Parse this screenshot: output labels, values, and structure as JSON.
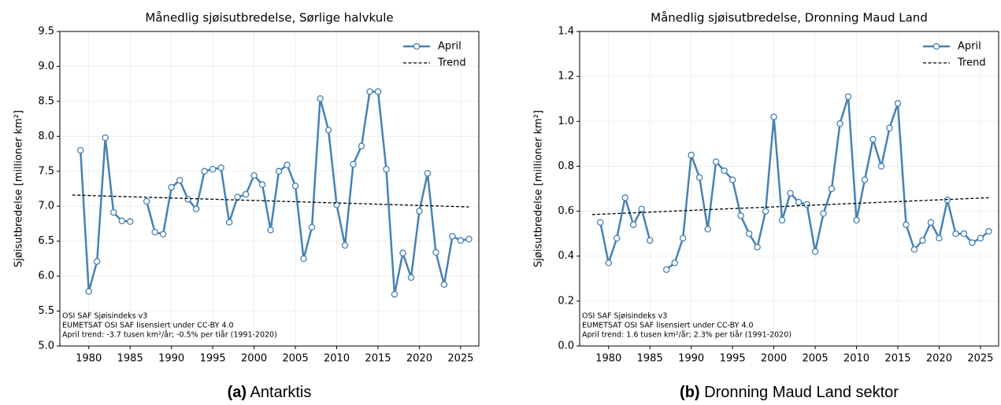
{
  "chart_data": [
    {
      "type": "line",
      "title": "Månedlig sjøisutbredelse, Sørlige halvkule",
      "y_label": "Sjøisutbredelse [millioner km²]",
      "x": [
        1979,
        1980,
        1981,
        1982,
        1983,
        1984,
        1985,
        1986,
        1987,
        1988,
        1989,
        1990,
        1991,
        1992,
        1993,
        1994,
        1995,
        1996,
        1997,
        1998,
        1999,
        2000,
        2001,
        2002,
        2003,
        2004,
        2005,
        2006,
        2007,
        2008,
        2009,
        2010,
        2011,
        2012,
        2013,
        2014,
        2015,
        2016,
        2017,
        2018,
        2019,
        2020,
        2021,
        2022,
        2023,
        2024,
        2025,
        2026
      ],
      "series": [
        {
          "name": "April",
          "color": "#4682b4",
          "values": [
            7.8,
            5.78,
            6.21,
            7.98,
            6.91,
            6.79,
            6.78,
            null,
            7.07,
            6.63,
            6.6,
            7.27,
            7.37,
            7.1,
            6.96,
            7.5,
            7.53,
            7.55,
            6.77,
            7.13,
            7.17,
            7.44,
            7.31,
            6.66,
            7.5,
            7.59,
            7.29,
            6.25,
            6.7,
            8.54,
            8.09,
            7.02,
            6.44,
            7.6,
            7.86,
            8.64,
            8.64,
            7.53,
            5.74,
            6.33,
            5.98,
            6.93,
            7.47,
            6.34,
            5.88,
            6.57,
            6.51,
            6.53
          ]
        },
        {
          "name": "Trend",
          "color": "#000000",
          "linestyle": "dashed",
          "x": [
            1978,
            2026
          ],
          "values": [
            7.16,
            6.99
          ]
        }
      ],
      "xlim": [
        1976.5,
        2027.2
      ],
      "xticks": [
        1980,
        1985,
        1990,
        1995,
        2000,
        2005,
        2010,
        2015,
        2020,
        2025
      ],
      "ylim": [
        5.0,
        9.5
      ],
      "yticks": [
        {
          "value": 5.0,
          "label": "5.0"
        },
        {
          "value": 5.5,
          "label": "5.5"
        },
        {
          "value": 6.0,
          "label": "6.0"
        },
        {
          "value": 6.5,
          "label": "6.5"
        },
        {
          "value": 7.0,
          "label": "7.0"
        },
        {
          "value": 7.5,
          "label": "7.5"
        },
        {
          "value": 8.0,
          "label": "8.0"
        },
        {
          "value": 8.5,
          "label": "8.5"
        },
        {
          "value": 9.0,
          "label": "9.0"
        },
        {
          "value": 9.5,
          "label": "9.5"
        }
      ],
      "grid": true,
      "legend": "upper right",
      "annotations": [
        "OSI SAF Sjøisindeks v3",
        "EUMETSAT OSI SAF lisensiert under CC-BY 4.0",
        "April trend: -3.7 tusen km²/år; -0.5% per tiår (1991-2020)"
      ],
      "caption": {
        "label": "(a)",
        "text": "Antarktis"
      }
    },
    {
      "type": "line",
      "title": "Månedlig sjøisutbredelse, Dronning Maud Land",
      "y_label": "Sjøisutbredelse [millioner km²]",
      "x": [
        1979,
        1980,
        1981,
        1982,
        1983,
        1984,
        1985,
        1986,
        1987,
        1988,
        1989,
        1990,
        1991,
        1992,
        1993,
        1994,
        1995,
        1996,
        1997,
        1998,
        1999,
        2000,
        2001,
        2002,
        2003,
        2004,
        2005,
        2006,
        2007,
        2008,
        2009,
        2010,
        2011,
        2012,
        2013,
        2014,
        2015,
        2016,
        2017,
        2018,
        2019,
        2020,
        2021,
        2022,
        2023,
        2024,
        2025,
        2026
      ],
      "series": [
        {
          "name": "April",
          "color": "#4682b4",
          "values": [
            0.55,
            0.37,
            0.48,
            0.66,
            0.54,
            0.61,
            0.47,
            null,
            0.34,
            0.37,
            0.48,
            0.85,
            0.75,
            0.52,
            0.82,
            0.78,
            0.74,
            0.58,
            0.5,
            0.44,
            0.6,
            1.02,
            0.56,
            0.68,
            0.64,
            0.63,
            0.42,
            0.59,
            0.7,
            0.99,
            1.11,
            0.56,
            0.74,
            0.92,
            0.8,
            0.97,
            1.08,
            0.54,
            0.43,
            0.47,
            0.55,
            0.48,
            0.65,
            0.5,
            0.5,
            0.46,
            0.48,
            0.51
          ]
        },
        {
          "name": "Trend",
          "color": "#000000",
          "linestyle": "dashed",
          "x": [
            1978,
            2026
          ],
          "values": [
            0.585,
            0.66
          ]
        }
      ],
      "xlim": [
        1976.5,
        2027.2
      ],
      "xticks": [
        1980,
        1985,
        1990,
        1995,
        2000,
        2005,
        2010,
        2015,
        2020,
        2025
      ],
      "ylim": [
        0.0,
        1.4
      ],
      "yticks": [
        {
          "value": 0.0,
          "label": "0.0"
        },
        {
          "value": 0.2,
          "label": "0.2"
        },
        {
          "value": 0.4,
          "label": "0.4"
        },
        {
          "value": 0.6,
          "label": "0.6"
        },
        {
          "value": 0.8,
          "label": "0.8"
        },
        {
          "value": 1.0,
          "label": "1.0"
        },
        {
          "value": 1.2,
          "label": "1.2"
        },
        {
          "value": 1.4,
          "label": "1.4"
        }
      ],
      "grid": true,
      "legend": "upper right",
      "annotations": [
        "OSI SAF Sjøisindeks v3",
        "EUMETSAT OSI SAF lisensiert under CC-BY 4.0",
        "April trend: 1.6 tusen km²/år; 2.3% per tiår (1991-2020)"
      ],
      "caption": {
        "label": "(b)",
        "text": "Dronning Maud Land sektor"
      }
    }
  ]
}
